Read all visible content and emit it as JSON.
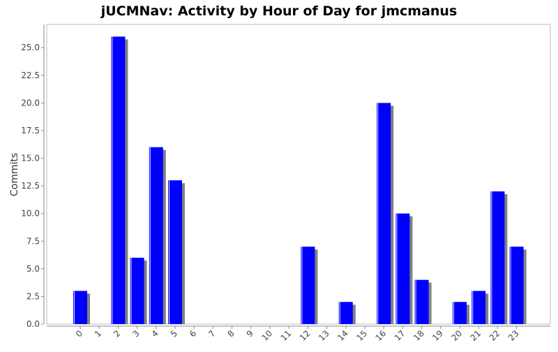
{
  "chart_data": {
    "type": "bar",
    "title": "jUCMNav: Activity by Hour of Day for jmcmanus",
    "xlabel": "",
    "ylabel": "Commits",
    "categories": [
      "0",
      "1",
      "2",
      "3",
      "4",
      "5",
      "6",
      "7",
      "8",
      "9",
      "10",
      "11",
      "12",
      "13",
      "14",
      "15",
      "16",
      "17",
      "18",
      "19",
      "20",
      "21",
      "22",
      "23"
    ],
    "values": [
      3,
      0,
      26,
      6,
      16,
      13,
      0,
      0,
      0,
      0,
      0,
      0,
      7,
      0,
      2,
      0,
      20,
      10,
      4,
      0,
      2,
      3,
      12,
      7
    ],
    "ylim": [
      0,
      27.1
    ],
    "yticks": [
      "0.0",
      "2.5",
      "5.0",
      "7.5",
      "10.0",
      "12.5",
      "15.0",
      "17.5",
      "20.0",
      "22.5",
      "25.0"
    ],
    "grid": false,
    "colors": {
      "bar": "#0000ff",
      "shadow": "#808080",
      "axis": "#888888",
      "text": "#444444"
    }
  }
}
